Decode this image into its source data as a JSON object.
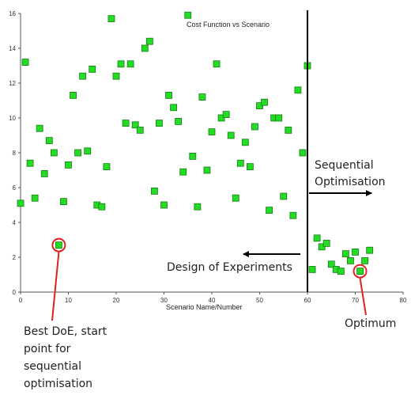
{
  "chart_data": {
    "type": "scatter",
    "title": "Cost Function vs Scenario",
    "xlabel": "Scenario Name/Number",
    "ylabel": "",
    "xlim": [
      0,
      80
    ],
    "ylim": [
      0,
      16
    ],
    "x_ticks": [
      "0",
      "10",
      "20",
      "30",
      "40",
      "50",
      "60",
      "70",
      "80"
    ],
    "y_ticks": [
      "0",
      "2",
      "4",
      "6",
      "8",
      "10",
      "12",
      "14",
      "16"
    ],
    "grid": false,
    "marker_color": "#22dd22",
    "marker_edge_color": "#1a7a1a",
    "highlight_color": "#e02020",
    "series": [
      {
        "x": [
          0,
          1,
          2,
          3,
          4,
          5,
          6,
          7,
          8,
          9,
          10,
          11,
          12,
          13,
          14,
          15,
          16,
          17,
          18,
          19,
          20,
          21,
          22,
          23,
          24,
          25,
          26,
          27,
          28,
          29,
          30,
          31,
          32,
          33,
          34,
          35,
          36,
          37,
          38,
          39,
          40,
          41,
          42,
          43,
          44,
          45,
          46,
          47,
          48,
          49,
          50,
          51,
          52,
          53,
          54,
          55,
          56,
          57,
          58,
          59,
          60,
          61,
          62,
          63,
          64,
          65,
          66,
          67,
          68,
          69,
          70,
          71,
          72,
          73
        ],
        "y": [
          5.1,
          13.2,
          7.4,
          5.4,
          9.4,
          6.8,
          8.7,
          8.0,
          2.7,
          5.2,
          7.3,
          11.3,
          8.0,
          12.4,
          8.1,
          12.8,
          5.0,
          4.9,
          7.2,
          15.7,
          12.4,
          13.1,
          9.7,
          13.1,
          9.6,
          9.3,
          14.0,
          14.4,
          5.8,
          9.7,
          5.0,
          11.3,
          10.6,
          9.8,
          6.9,
          15.9,
          7.8,
          4.9,
          11.2,
          7.0,
          9.2,
          13.1,
          10.0,
          10.2,
          9.0,
          5.4,
          7.4,
          8.6,
          7.2,
          9.5,
          10.7,
          10.9,
          4.7,
          10.0,
          10.0,
          5.5,
          9.3,
          4.4,
          11.6,
          8.0,
          13.0,
          1.3,
          3.1,
          2.6,
          2.8,
          1.6,
          1.3,
          1.2,
          2.2,
          1.8,
          2.3,
          1.2,
          1.8,
          2.4
        ]
      }
    ],
    "highlights": [
      {
        "x": 8,
        "y": 2.7
      },
      {
        "x": 71,
        "y": 1.2
      }
    ],
    "divider_x": 60,
    "annotations": {
      "sequential": "Sequential",
      "optimisation": "Optimisation",
      "doe": "Design of Experiments",
      "best_doe_line1": "Best DoE, start",
      "best_doe_line2": "point for",
      "best_doe_line3": "sequential",
      "best_doe_line4": "optimisation",
      "optimum": "Optimum"
    }
  }
}
